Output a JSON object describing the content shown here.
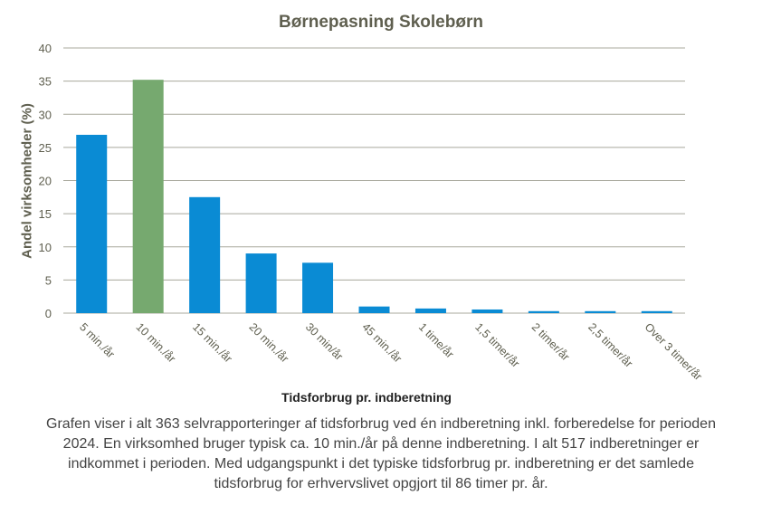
{
  "chart_data": {
    "type": "bar",
    "title": "Børnepasning Skolebørn",
    "xlabel": "Tidsforbrug pr. indberetning",
    "ylabel": "Andel virksomheder  (%)",
    "categories": [
      "5 min./år",
      "10 min./år",
      "15 min./år",
      "20 min./år",
      "30 min/år",
      "45 min./år",
      "1 time/år",
      "1,5 timer/år",
      "2 timer/år",
      "2,5 timer/år",
      "Over 3 timer/år"
    ],
    "values": [
      26.9,
      35.2,
      17.5,
      9.0,
      7.6,
      1.0,
      0.7,
      0.55,
      0.3,
      0.3,
      0.3
    ],
    "highlight_index": 1,
    "ylim": [
      0,
      40
    ],
    "yticks": [
      0,
      5,
      10,
      15,
      20,
      25,
      30,
      35,
      40
    ],
    "grid": true,
    "colors": {
      "bar": "#0a8bd4",
      "highlight": "#76a96f",
      "grid": "#a8a89c",
      "text": "#5f5f4f"
    }
  },
  "caption": "Grafen viser i alt 363 selvrapporteringer  af tidsforbrug ved én indberetning inkl. forberedelse for perioden 2024. En virksomhed bruger typisk ca. 10 min./år på denne indberetning.  I alt 517 indberetninger er indkommet i perioden.  Med udgangspunkt i det typiske tidsforbrug pr. indberetning  er det samlede tidsforbrug for erhvervslivet opgjort til 86 timer pr. år."
}
